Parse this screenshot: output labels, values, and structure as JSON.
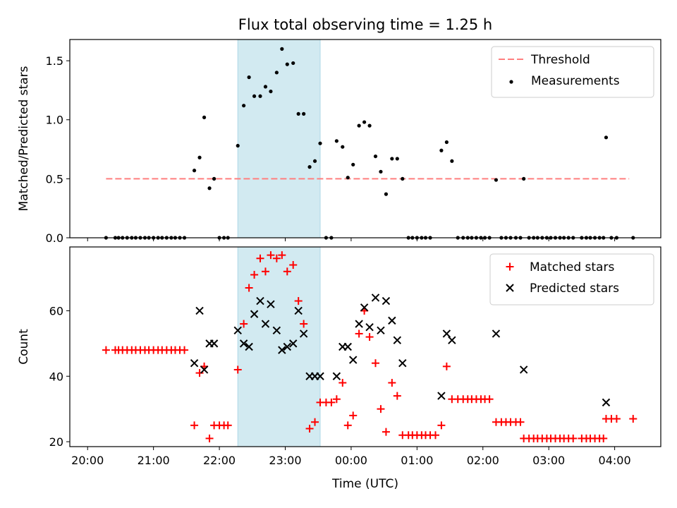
{
  "figure_title": "Flux total observing time = 1.25 h",
  "chart_data": [
    {
      "type": "scatter",
      "panel": "top",
      "title": "Flux total observing time = 1.25 h",
      "xlabel": "",
      "ylabel": "Matched/Predicted stars",
      "x_unit": "hours since 20:00 UTC",
      "xlim": [
        -0.27,
        8.7
      ],
      "ylim": [
        0,
        1.68
      ],
      "yticks": [
        0.0,
        0.5,
        1.0,
        1.5
      ],
      "ytick_labels": [
        "0.0",
        "0.5",
        "1.0",
        "1.5"
      ],
      "shaded_interval": {
        "start": 2.28,
        "end": 3.53,
        "color": "#add8e6"
      },
      "legend": {
        "position": "top-right",
        "entries": [
          {
            "name": "Threshold",
            "marker": "dashed-line",
            "color": "#ff7f7f"
          },
          {
            "name": "Measurements",
            "marker": "dot",
            "color": "#000000"
          }
        ]
      },
      "series": [
        {
          "name": "Threshold",
          "kind": "hline",
          "y": 0.5,
          "x_range": [
            0.28,
            8.22
          ],
          "color": "#ff7f7f"
        },
        {
          "name": "Measurements",
          "kind": "points",
          "color": "#000000",
          "points": [
            [
              0.28,
              0
            ],
            [
              0.42,
              0
            ],
            [
              0.47,
              0
            ],
            [
              0.53,
              0
            ],
            [
              0.6,
              0
            ],
            [
              0.67,
              0
            ],
            [
              0.73,
              0
            ],
            [
              0.8,
              0
            ],
            [
              0.87,
              0
            ],
            [
              0.93,
              0
            ],
            [
              1.0,
              0
            ],
            [
              1.07,
              0
            ],
            [
              1.13,
              0
            ],
            [
              1.2,
              0
            ],
            [
              1.27,
              0
            ],
            [
              1.33,
              0
            ],
            [
              1.4,
              0
            ],
            [
              1.47,
              0
            ],
            [
              1.62,
              0.57
            ],
            [
              1.7,
              0.68
            ],
            [
              1.77,
              1.02
            ],
            [
              1.85,
              0.42
            ],
            [
              1.92,
              0.5
            ],
            [
              2.0,
              0
            ],
            [
              2.07,
              0
            ],
            [
              2.13,
              0
            ],
            [
              2.28,
              0.78
            ],
            [
              2.37,
              1.12
            ],
            [
              2.45,
              1.36
            ],
            [
              2.53,
              1.2
            ],
            [
              2.62,
              1.2
            ],
            [
              2.7,
              1.28
            ],
            [
              2.78,
              1.24
            ],
            [
              2.87,
              1.4
            ],
            [
              2.95,
              1.6
            ],
            [
              3.03,
              1.47
            ],
            [
              3.12,
              1.48
            ],
            [
              3.2,
              1.05
            ],
            [
              3.28,
              1.05
            ],
            [
              3.37,
              0.6
            ],
            [
              3.45,
              0.65
            ],
            [
              3.53,
              0.8
            ],
            [
              3.62,
              0
            ],
            [
              3.7,
              0
            ],
            [
              3.78,
              0.82
            ],
            [
              3.87,
              0.77
            ],
            [
              3.95,
              0.51
            ],
            [
              4.03,
              0.62
            ],
            [
              4.12,
              0.95
            ],
            [
              4.2,
              0.98
            ],
            [
              4.28,
              0.95
            ],
            [
              4.37,
              0.69
            ],
            [
              4.45,
              0.56
            ],
            [
              4.53,
              0.37
            ],
            [
              4.62,
              0.67
            ],
            [
              4.7,
              0.67
            ],
            [
              4.78,
              0.5
            ],
            [
              4.87,
              0
            ],
            [
              4.93,
              0
            ],
            [
              5.0,
              0
            ],
            [
              5.07,
              0
            ],
            [
              5.13,
              0
            ],
            [
              5.2,
              0
            ],
            [
              5.37,
              0.74
            ],
            [
              5.45,
              0.81
            ],
            [
              5.53,
              0.65
            ],
            [
              5.62,
              0
            ],
            [
              5.7,
              0
            ],
            [
              5.77,
              0
            ],
            [
              5.83,
              0
            ],
            [
              5.9,
              0
            ],
            [
              5.97,
              0
            ],
            [
              6.03,
              0
            ],
            [
              6.1,
              0
            ],
            [
              6.2,
              0.49
            ],
            [
              6.28,
              0
            ],
            [
              6.35,
              0
            ],
            [
              6.42,
              0
            ],
            [
              6.5,
              0
            ],
            [
              6.57,
              0
            ],
            [
              6.62,
              0.5
            ],
            [
              6.7,
              0
            ],
            [
              6.77,
              0
            ],
            [
              6.83,
              0
            ],
            [
              6.9,
              0
            ],
            [
              6.97,
              0
            ],
            [
              7.03,
              0
            ],
            [
              7.1,
              0
            ],
            [
              7.17,
              0
            ],
            [
              7.23,
              0
            ],
            [
              7.3,
              0
            ],
            [
              7.37,
              0
            ],
            [
              7.5,
              0
            ],
            [
              7.57,
              0
            ],
            [
              7.63,
              0
            ],
            [
              7.7,
              0
            ],
            [
              7.77,
              0
            ],
            [
              7.83,
              0
            ],
            [
              7.87,
              0.85
            ],
            [
              7.95,
              0
            ],
            [
              8.03,
              0
            ],
            [
              8.28,
              0
            ]
          ]
        }
      ]
    },
    {
      "type": "scatter",
      "panel": "bottom",
      "xlabel": "Time (UTC)",
      "ylabel": "Count",
      "x_unit": "hours since 20:00 UTC",
      "xlim": [
        -0.27,
        8.7
      ],
      "ylim": [
        18.5,
        79.5
      ],
      "xticks": [
        0,
        1,
        2,
        3,
        4,
        5,
        6,
        7,
        8
      ],
      "xtick_labels": [
        "20:00",
        "21:00",
        "22:00",
        "23:00",
        "00:00",
        "01:00",
        "02:00",
        "03:00",
        "04:00"
      ],
      "yticks": [
        20,
        40,
        60
      ],
      "ytick_labels": [
        "20",
        "40",
        "60"
      ],
      "shaded_interval": {
        "start": 2.28,
        "end": 3.53,
        "color": "#add8e6"
      },
      "legend": {
        "position": "top-right",
        "entries": [
          {
            "name": "Matched stars",
            "marker": "plus",
            "color": "#ff0000"
          },
          {
            "name": "Predicted stars",
            "marker": "x",
            "color": "#000000"
          }
        ]
      },
      "series": [
        {
          "name": "Matched stars",
          "marker": "plus",
          "color": "#ff0000",
          "points": [
            [
              0.28,
              48
            ],
            [
              0.42,
              48
            ],
            [
              0.47,
              48
            ],
            [
              0.53,
              48
            ],
            [
              0.6,
              48
            ],
            [
              0.67,
              48
            ],
            [
              0.73,
              48
            ],
            [
              0.8,
              48
            ],
            [
              0.87,
              48
            ],
            [
              0.93,
              48
            ],
            [
              1.0,
              48
            ],
            [
              1.07,
              48
            ],
            [
              1.13,
              48
            ],
            [
              1.2,
              48
            ],
            [
              1.27,
              48
            ],
            [
              1.33,
              48
            ],
            [
              1.4,
              48
            ],
            [
              1.47,
              48
            ],
            [
              1.62,
              25
            ],
            [
              1.7,
              41
            ],
            [
              1.77,
              43
            ],
            [
              1.85,
              21
            ],
            [
              1.92,
              25
            ],
            [
              2.0,
              25
            ],
            [
              2.07,
              25
            ],
            [
              2.13,
              25
            ],
            [
              2.28,
              42
            ],
            [
              2.37,
              56
            ],
            [
              2.45,
              67
            ],
            [
              2.53,
              71
            ],
            [
              2.62,
              76
            ],
            [
              2.7,
              72
            ],
            [
              2.78,
              77
            ],
            [
              2.87,
              76
            ],
            [
              2.95,
              77
            ],
            [
              3.03,
              72
            ],
            [
              3.12,
              74
            ],
            [
              3.2,
              63
            ],
            [
              3.28,
              56
            ],
            [
              3.37,
              24
            ],
            [
              3.45,
              26
            ],
            [
              3.53,
              32
            ],
            [
              3.62,
              32
            ],
            [
              3.7,
              32
            ],
            [
              3.78,
              33
            ],
            [
              3.87,
              38
            ],
            [
              3.95,
              25
            ],
            [
              4.03,
              28
            ],
            [
              4.12,
              53
            ],
            [
              4.2,
              60
            ],
            [
              4.28,
              52
            ],
            [
              4.37,
              44
            ],
            [
              4.45,
              30
            ],
            [
              4.53,
              23
            ],
            [
              4.62,
              38
            ],
            [
              4.7,
              34
            ],
            [
              4.78,
              22
            ],
            [
              4.87,
              22
            ],
            [
              4.93,
              22
            ],
            [
              5.0,
              22
            ],
            [
              5.07,
              22
            ],
            [
              5.13,
              22
            ],
            [
              5.2,
              22
            ],
            [
              5.28,
              22
            ],
            [
              5.37,
              25
            ],
            [
              5.45,
              43
            ],
            [
              5.53,
              33
            ],
            [
              5.62,
              33
            ],
            [
              5.7,
              33
            ],
            [
              5.77,
              33
            ],
            [
              5.83,
              33
            ],
            [
              5.9,
              33
            ],
            [
              5.97,
              33
            ],
            [
              6.03,
              33
            ],
            [
              6.1,
              33
            ],
            [
              6.2,
              26
            ],
            [
              6.28,
              26
            ],
            [
              6.35,
              26
            ],
            [
              6.42,
              26
            ],
            [
              6.5,
              26
            ],
            [
              6.57,
              26
            ],
            [
              6.62,
              21
            ],
            [
              6.7,
              21
            ],
            [
              6.77,
              21
            ],
            [
              6.83,
              21
            ],
            [
              6.9,
              21
            ],
            [
              6.97,
              21
            ],
            [
              7.03,
              21
            ],
            [
              7.1,
              21
            ],
            [
              7.17,
              21
            ],
            [
              7.23,
              21
            ],
            [
              7.3,
              21
            ],
            [
              7.37,
              21
            ],
            [
              7.5,
              21
            ],
            [
              7.57,
              21
            ],
            [
              7.63,
              21
            ],
            [
              7.7,
              21
            ],
            [
              7.77,
              21
            ],
            [
              7.83,
              21
            ],
            [
              7.87,
              27
            ],
            [
              7.95,
              27
            ],
            [
              8.03,
              27
            ],
            [
              8.28,
              27
            ]
          ]
        },
        {
          "name": "Predicted stars",
          "marker": "x",
          "color": "#000000",
          "points": [
            [
              1.62,
              44
            ],
            [
              1.7,
              60
            ],
            [
              1.77,
              42
            ],
            [
              1.85,
              50
            ],
            [
              1.92,
              50
            ],
            [
              2.28,
              54
            ],
            [
              2.37,
              50
            ],
            [
              2.45,
              49
            ],
            [
              2.53,
              59
            ],
            [
              2.62,
              63
            ],
            [
              2.7,
              56
            ],
            [
              2.78,
              62
            ],
            [
              2.87,
              54
            ],
            [
              2.95,
              48
            ],
            [
              3.03,
              49
            ],
            [
              3.12,
              50
            ],
            [
              3.2,
              60
            ],
            [
              3.28,
              53
            ],
            [
              3.37,
              40
            ],
            [
              3.45,
              40
            ],
            [
              3.53,
              40
            ],
            [
              3.78,
              40
            ],
            [
              3.87,
              49
            ],
            [
              3.95,
              49
            ],
            [
              4.03,
              45
            ],
            [
              4.12,
              56
            ],
            [
              4.2,
              61
            ],
            [
              4.28,
              55
            ],
            [
              4.37,
              64
            ],
            [
              4.45,
              54
            ],
            [
              4.53,
              63
            ],
            [
              4.62,
              57
            ],
            [
              4.7,
              51
            ],
            [
              4.78,
              44
            ],
            [
              5.37,
              34
            ],
            [
              5.45,
              53
            ],
            [
              5.53,
              51
            ],
            [
              6.2,
              53
            ],
            [
              6.62,
              42
            ],
            [
              7.87,
              32
            ]
          ]
        }
      ]
    }
  ]
}
